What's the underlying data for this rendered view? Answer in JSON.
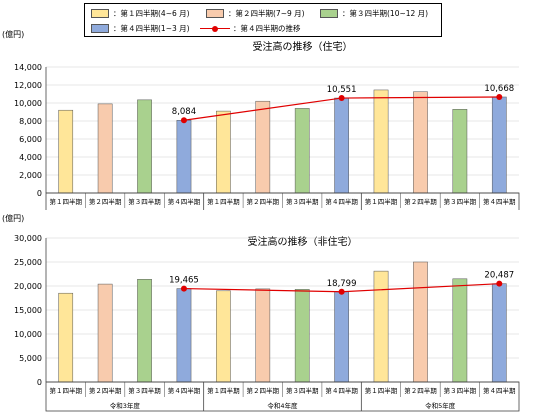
{
  "legend": {
    "q1": "：第１四半期(4~6 月)",
    "q2": "：第２四半期(7~9 月)",
    "q3": "：第３四半期(10~12 月)",
    "q4": "：第４四半期(1~3 月)",
    "line": "：第４四半期の推移"
  },
  "colors": {
    "q1": "#FFE699",
    "q2": "#F8CBAD",
    "q3": "#A9D18E",
    "q4": "#8FAADC",
    "line": "#E00000"
  },
  "chart_data": [
    {
      "type": "bar",
      "title": "受注高の推移（住宅）",
      "ylabel": "(億円)",
      "ylim": [
        0,
        14000
      ],
      "yticks": [
        0,
        2000,
        4000,
        6000,
        8000,
        10000,
        12000,
        14000
      ],
      "categories": [
        "第１四半期",
        "第２四半期",
        "第３四半期",
        "第４四半期",
        "第１四半期",
        "第２四半期",
        "第３四半期",
        "第４四半期",
        "第１四半期",
        "第２四半期",
        "第３四半期",
        "第４四半期"
      ],
      "groups": [
        "令和3年度",
        "令和4年度",
        "令和5年度"
      ],
      "values": [
        9200,
        9900,
        10350,
        8084,
        9100,
        10200,
        9400,
        10551,
        11450,
        11250,
        9300,
        10668
      ],
      "line_series": {
        "name": "第４四半期の推移",
        "values": [
          8084,
          10551,
          10668
        ],
        "labels": [
          "8,084",
          "10,551",
          "10,668"
        ]
      }
    },
    {
      "type": "bar",
      "title": "受注高の推移（非住宅）",
      "ylabel": "(億円)",
      "ylim": [
        0,
        30000
      ],
      "yticks": [
        0,
        5000,
        10000,
        15000,
        20000,
        25000,
        30000
      ],
      "categories": [
        "第１四半期",
        "第２四半期",
        "第３四半期",
        "第４四半期",
        "第１四半期",
        "第２四半期",
        "第３四半期",
        "第４四半期",
        "第１四半期",
        "第２四半期",
        "第３四半期",
        "第４四半期"
      ],
      "groups": [
        "令和3年度",
        "令和4年度",
        "令和5年度"
      ],
      "values": [
        18500,
        20400,
        21400,
        19465,
        19000,
        19400,
        19300,
        18799,
        23100,
        25000,
        21500,
        20487
      ],
      "line_series": {
        "name": "第４四半期の推移",
        "values": [
          19465,
          18799,
          20487
        ],
        "labels": [
          "19,465",
          "18,799",
          "20,487"
        ]
      }
    }
  ]
}
